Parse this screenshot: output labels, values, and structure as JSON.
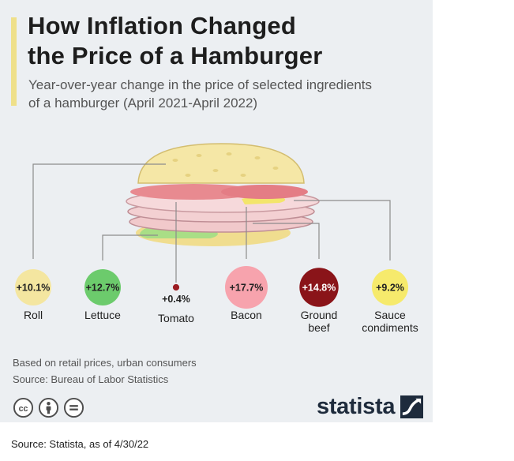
{
  "header": {
    "title_line1": "How Inflation Changed",
    "title_line2": "the Price of a Hamburger",
    "subtitle_line1": "Year-over-year change in the price of selected ingredients",
    "subtitle_line2": "of a hamburger (April 2021-April 2022)"
  },
  "chart_data": {
    "type": "bubble",
    "title": "How Inflation Changed the Price of a Hamburger",
    "subtitle": "Year-over-year change in the price of selected ingredients of a hamburger (April 2021-April 2022)",
    "unit": "%",
    "categories": [
      "Roll",
      "Lettuce",
      "Tomato",
      "Bacon",
      "Ground beef",
      "Sauce condiments"
    ],
    "values": [
      10.1,
      12.7,
      0.4,
      17.7,
      14.8,
      9.2
    ],
    "labels": [
      "+10.1%",
      "+12.7%",
      "+0.4%",
      "+17.7%",
      "+14.8%",
      "+9.2%"
    ],
    "name_lines": [
      [
        "Roll"
      ],
      [
        "Lettuce"
      ],
      [
        "Tomato"
      ],
      [
        "Bacon"
      ],
      [
        "Ground",
        "beef"
      ],
      [
        "Sauce",
        "condiments"
      ]
    ],
    "colors": [
      "#f4e6a0",
      "#6ccb6c",
      "#9b1c22",
      "#f7a3ad",
      "#8a1419",
      "#f6ea6c"
    ],
    "label_colors": [
      "#222222",
      "#222222",
      "#222222",
      "#222222",
      "#ffffff",
      "#222222"
    ]
  },
  "footer": {
    "note": "Based on retail prices, urban consumers",
    "source": "Source: Bureau of Labor Statistics",
    "license_icons": [
      "creative-commons-icon",
      "attribution-person-icon",
      "no-derivatives-icon"
    ],
    "brand": "statista"
  },
  "caption": "Source: Statista, as of 4/30/22",
  "colors": {
    "background": "#eceff2",
    "accent": "#efe08a",
    "brand": "#1e2b3c",
    "leader_line": "#8c8c8c"
  }
}
